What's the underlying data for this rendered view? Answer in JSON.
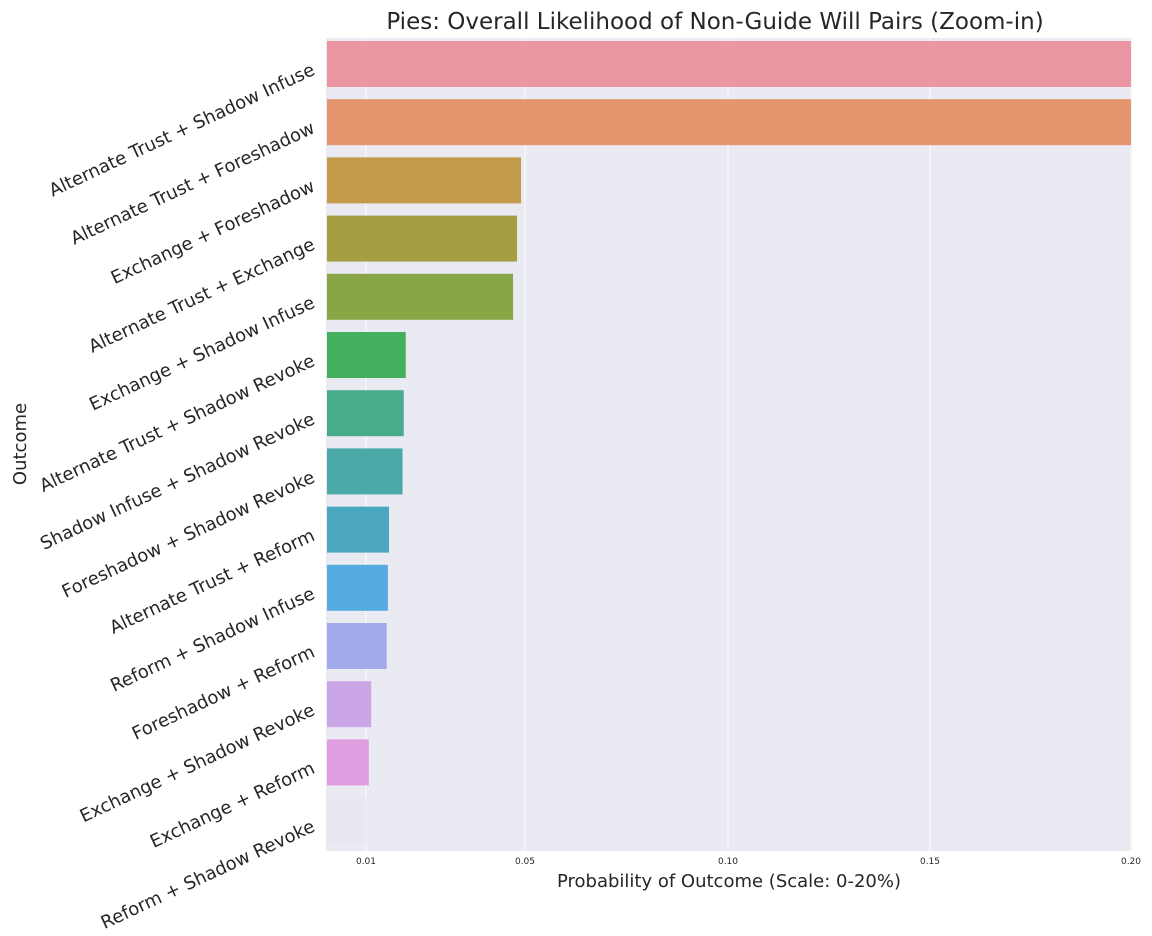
{
  "chart_data": {
    "type": "bar",
    "orientation": "horizontal",
    "title": "Pies: Overall Likelihood of Non-Guide Will Pairs (Zoom-in)",
    "xlabel": "Probability of Outcome (Scale: 0-20%)",
    "ylabel": "Outcome",
    "xlim": [
      0,
      0.2
    ],
    "xticks": [
      0.01,
      0.05,
      0.1,
      0.15,
      0.2
    ],
    "xtick_labels": [
      "0.01",
      "0.05",
      "0.10",
      "0.15",
      "0.20"
    ],
    "grid": true,
    "categories": [
      "Alternate Trust + Shadow Infuse",
      "Alternate Trust + Foreshadow",
      "Exchange + Foreshadow",
      "Alternate Trust + Exchange",
      "Exchange + Shadow Infuse",
      "Alternate Trust + Shadow Revoke",
      "Shadow Infuse + Shadow Revoke",
      "Foreshadow + Shadow Revoke",
      "Alternate Trust + Reform",
      "Reform + Shadow Infuse",
      "Foreshadow + Reform",
      "Exchange + Shadow Revoke",
      "Exchange + Reform",
      "Reform + Shadow Revoke"
    ],
    "values": [
      0.2,
      0.2,
      0.049,
      0.048,
      0.047,
      0.02,
      0.0195,
      0.0192,
      0.0158,
      0.0155,
      0.0152,
      0.0113,
      0.0107,
      0.0101
    ],
    "colors": [
      "#ea96a3",
      "#e4956d",
      "#c19a4a",
      "#a59f42",
      "#88a645",
      "#44af5d",
      "#48ab8b",
      "#4baaa8",
      "#4aa7bf",
      "#55ace0",
      "#a3aaec",
      "#cba6e7",
      "#e09ee0",
      "#e8e8f0"
    ]
  }
}
